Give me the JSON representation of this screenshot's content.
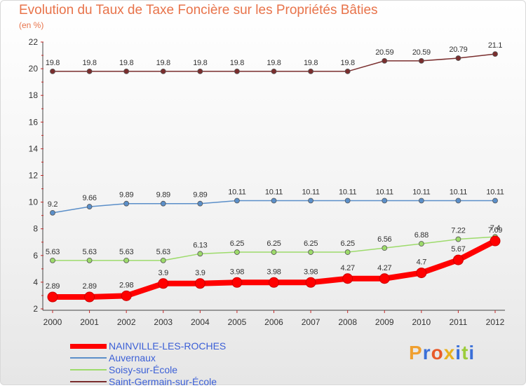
{
  "chart_data": {
    "type": "line",
    "title": "Evolution du Taux de Taxe Foncière sur les Propriétés Bâties",
    "ylabel": "(en %)",
    "xlabel": "",
    "ylim": [
      2,
      22
    ],
    "yticks": [
      2,
      4,
      6,
      8,
      10,
      12,
      14,
      16,
      18,
      20,
      22
    ],
    "categories": [
      "2000",
      "2001",
      "2002",
      "2003",
      "2004",
      "2005",
      "2006",
      "2007",
      "2008",
      "2009",
      "2010",
      "2011",
      "2012"
    ],
    "grid": false,
    "legend_position": "bottom-left",
    "series": [
      {
        "name": "Saint-Germain-sur-École",
        "color": "#7a2e2e",
        "stroke": 1.5,
        "marker": 3.5,
        "values": [
          19.8,
          19.8,
          19.8,
          19.8,
          19.8,
          19.8,
          19.8,
          19.8,
          19.8,
          20.59,
          20.59,
          20.79,
          21.1
        ],
        "labels": [
          "19.8",
          "19.8",
          "19.8",
          "19.8",
          "19.8",
          "19.8",
          "19.8",
          "19.8",
          "19.8",
          "20.59",
          "20.59",
          "20.79",
          "21.1"
        ]
      },
      {
        "name": "Auvernaux",
        "color": "#5b8fc9",
        "stroke": 1.5,
        "marker": 3.5,
        "values": [
          9.2,
          9.66,
          9.89,
          9.89,
          9.89,
          10.11,
          10.11,
          10.11,
          10.11,
          10.11,
          10.11,
          10.11,
          10.11
        ],
        "labels": [
          "9.2",
          "9.66",
          "9.89",
          "9.89",
          "9.89",
          "10.11",
          "10.11",
          "10.11",
          "10.11",
          "10.11",
          "10.11",
          "10.11",
          "10.11"
        ]
      },
      {
        "name": "Soisy-sur-École",
        "color": "#9ddb6b",
        "stroke": 1.5,
        "marker": 3.5,
        "values": [
          5.63,
          5.63,
          5.63,
          5.63,
          6.13,
          6.25,
          6.25,
          6.25,
          6.25,
          6.56,
          6.88,
          7.22,
          7.4
        ],
        "labels": [
          "5.63",
          "5.63",
          "5.63",
          "5.63",
          "6.13",
          "6.25",
          "6.25",
          "6.25",
          "6.25",
          "6.56",
          "6.88",
          "7.22",
          "7.4"
        ]
      },
      {
        "name": "NAINVILLE-LES-ROCHES",
        "color": "#ff0000",
        "stroke": 8,
        "marker": 7,
        "values": [
          2.89,
          2.89,
          2.98,
          3.9,
          3.9,
          3.98,
          3.98,
          3.98,
          4.27,
          4.27,
          4.7,
          5.67,
          7.09
        ],
        "labels": [
          "2.89",
          "2.89",
          "2.98",
          "3.9",
          "3.9",
          "3.98",
          "3.98",
          "3.98",
          "4.27",
          "4.27",
          "4.7",
          "5.67",
          "7.09"
        ]
      }
    ]
  },
  "legend": [
    {
      "label": "NAINVILLE-LES-ROCHES",
      "color": "#ff0000"
    },
    {
      "label": "Auvernaux",
      "color": "#5b8fc9"
    },
    {
      "label": "Soisy-sur-École",
      "color": "#9ddb6b"
    },
    {
      "label": "Saint-Germain-sur-École",
      "color": "#7a2e2e"
    }
  ],
  "logo": {
    "text": "Proxiti",
    "letter_colors": [
      "#f0a030",
      "#3a6fd8",
      "#e85a2a",
      "#e8b020",
      "#3a6fd8",
      "#9ccc3a",
      "#3a6fd8"
    ]
  }
}
